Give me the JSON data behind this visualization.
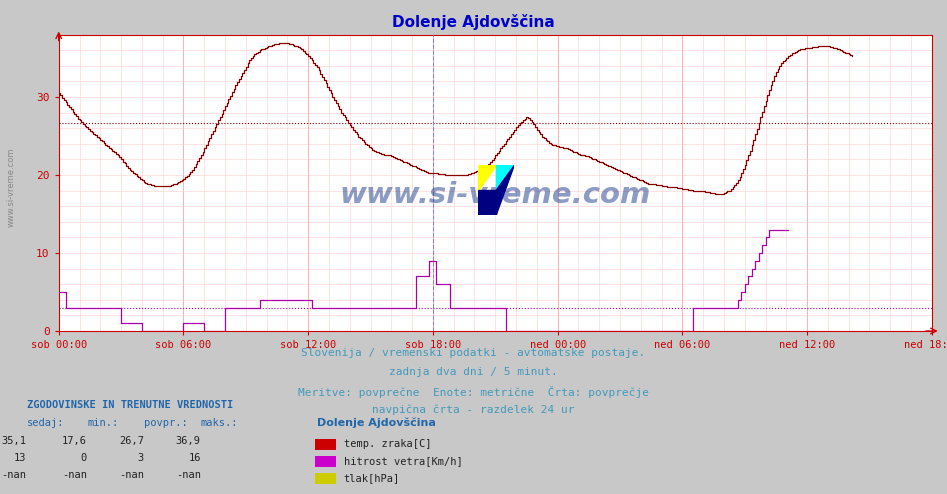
{
  "title": "Dolenje Ajdovščina",
  "title_color": "#0000cc",
  "bg_color": "#e8e8e8",
  "plot_bg_color": "#ffffff",
  "outer_bg_color": "#d8d8d8",
  "grid_color_h": "#ffaaaa",
  "grid_color_v": "#ffcccc",
  "temp_color": "#880000",
  "wind_color": "#aa00aa",
  "avg_temp_line_color": "#880000",
  "avg_wind_line_color": "#aa00aa",
  "vline_color": "#8888bb",
  "axis_color": "#cc0000",
  "tick_color": "#0000cc",
  "xlabels": [
    "sob 00:00",
    "sob 06:00",
    "sob 12:00",
    "sob 18:00",
    "ned 00:00",
    "ned 06:00",
    "ned 12:00",
    "ned 18:00"
  ],
  "xtick_positions": [
    0,
    72,
    144,
    216,
    288,
    360,
    432,
    504
  ],
  "ylim": [
    0,
    38
  ],
  "yticks": [
    0,
    10,
    20,
    30
  ],
  "avg_temp": 26.7,
  "avg_wind": 3.0,
  "vline_pos": 216,
  "footer_lines": [
    "Slovenija / vremenski podatki - avtomatske postaje.",
    "zadnja dva dni / 5 minut.",
    "Meritve: povprečne  Enote: metrične  Črta: povprečje",
    "navpična črta - razdelek 24 ur"
  ],
  "legend_title": "Dolenje Ajdovščina",
  "legend_items": [
    {
      "label": "temp. zraka[C]",
      "color": "#cc0000"
    },
    {
      "label": "hitrost vetra[Km/h]",
      "color": "#cc00cc"
    },
    {
      "label": "tlak[hPa]",
      "color": "#cccc00"
    }
  ],
  "stats_header": "ZGODOVINSKE IN TRENUTNE VREDNOSTI",
  "stats_cols": [
    "sedaj:",
    "min.:",
    "povpr.:",
    "maks.:"
  ],
  "stats_rows": [
    [
      "35,1",
      "17,6",
      "26,7",
      "36,9"
    ],
    [
      "13",
      "0",
      "3",
      "16"
    ],
    [
      "-nan",
      "-nan",
      "-nan",
      "-nan"
    ]
  ],
  "watermark": "www.si-vreme.com",
  "watermark_color": "#1a3a8a",
  "n_points": 505,
  "temp_data": [
    30.5,
    30.2,
    29.9,
    29.6,
    29.3,
    29.0,
    28.7,
    28.4,
    28.1,
    27.8,
    27.5,
    27.2,
    27.0,
    26.8,
    26.5,
    26.3,
    26.1,
    25.9,
    25.7,
    25.5,
    25.3,
    25.1,
    24.9,
    24.7,
    24.5,
    24.3,
    24.1,
    23.9,
    23.7,
    23.5,
    23.3,
    23.1,
    22.9,
    22.7,
    22.5,
    22.3,
    22.0,
    21.7,
    21.5,
    21.2,
    20.9,
    20.7,
    20.5,
    20.3,
    20.1,
    19.9,
    19.7,
    19.5,
    19.3,
    19.1,
    19.0,
    18.9,
    18.8,
    18.7,
    18.7,
    18.6,
    18.6,
    18.6,
    18.6,
    18.6,
    18.6,
    18.6,
    18.6,
    18.6,
    18.6,
    18.7,
    18.8,
    18.9,
    19.0,
    19.1,
    19.2,
    19.3,
    19.5,
    19.7,
    19.9,
    20.1,
    20.4,
    20.7,
    21.0,
    21.4,
    21.8,
    22.2,
    22.6,
    23.0,
    23.4,
    23.8,
    24.3,
    24.8,
    25.2,
    25.7,
    26.1,
    26.5,
    27.0,
    27.4,
    27.8,
    28.3,
    28.8,
    29.2,
    29.7,
    30.1,
    30.6,
    31.0,
    31.5,
    31.9,
    32.3,
    32.7,
    33.1,
    33.5,
    33.9,
    34.3,
    34.7,
    35.0,
    35.2,
    35.5,
    35.7,
    35.8,
    36.0,
    36.1,
    36.2,
    36.3,
    36.4,
    36.5,
    36.6,
    36.7,
    36.8,
    36.8,
    36.8,
    36.9,
    36.9,
    36.9,
    36.9,
    36.9,
    36.9,
    36.8,
    36.8,
    36.7,
    36.6,
    36.5,
    36.4,
    36.3,
    36.1,
    35.9,
    35.7,
    35.5,
    35.3,
    35.0,
    34.7,
    34.4,
    34.1,
    33.8,
    33.4,
    33.0,
    32.6,
    32.2,
    31.8,
    31.3,
    30.9,
    30.5,
    30.0,
    29.6,
    29.2,
    28.8,
    28.4,
    28.0,
    27.7,
    27.4,
    27.0,
    26.7,
    26.4,
    26.1,
    25.8,
    25.5,
    25.2,
    24.9,
    24.7,
    24.5,
    24.2,
    24.0,
    23.8,
    23.6,
    23.4,
    23.2,
    23.1,
    23.0,
    22.9,
    22.8,
    22.7,
    22.7,
    22.6,
    22.6,
    22.5,
    22.5,
    22.4,
    22.3,
    22.2,
    22.1,
    22.0,
    21.9,
    21.8,
    21.7,
    21.6,
    21.5,
    21.4,
    21.3,
    21.2,
    21.1,
    21.0,
    20.9,
    20.8,
    20.7,
    20.6,
    20.5,
    20.4,
    20.3,
    20.3,
    20.3,
    20.2,
    20.2,
    20.2,
    20.1,
    20.1,
    20.1,
    20.1,
    20.0,
    20.0,
    20.0,
    20.0,
    20.0,
    20.0,
    20.0,
    20.0,
    20.0,
    20.0,
    20.0,
    20.0,
    20.0,
    20.1,
    20.1,
    20.2,
    20.3,
    20.4,
    20.5,
    20.6,
    20.7,
    20.8,
    20.9,
    21.0,
    21.2,
    21.4,
    21.6,
    21.9,
    22.2,
    22.5,
    22.8,
    23.1,
    23.4,
    23.7,
    24.0,
    24.3,
    24.6,
    24.9,
    25.2,
    25.5,
    25.8,
    26.1,
    26.4,
    26.6,
    26.8,
    27.0,
    27.2,
    27.4,
    27.3,
    27.1,
    26.8,
    26.5,
    26.2,
    25.8,
    25.5,
    25.2,
    24.9,
    24.7,
    24.5,
    24.3,
    24.1,
    24.0,
    23.9,
    23.8,
    23.7,
    23.7,
    23.6,
    23.6,
    23.5,
    23.5,
    23.4,
    23.3,
    23.2,
    23.1,
    23.0,
    22.9,
    22.8,
    22.7,
    22.6,
    22.5,
    22.5,
    22.4,
    22.4,
    22.3,
    22.2,
    22.1,
    22.0,
    21.9,
    21.8,
    21.7,
    21.6,
    21.5,
    21.4,
    21.3,
    21.2,
    21.1,
    21.0,
    20.9,
    20.8,
    20.7,
    20.6,
    20.5,
    20.4,
    20.3,
    20.2,
    20.1,
    20.0,
    19.9,
    19.8,
    19.7,
    19.6,
    19.5,
    19.4,
    19.3,
    19.2,
    19.1,
    19.0,
    18.9,
    18.8,
    18.8,
    18.8,
    18.8,
    18.7,
    18.7,
    18.7,
    18.6,
    18.6,
    18.6,
    18.5,
    18.5,
    18.5,
    18.4,
    18.4,
    18.4,
    18.3,
    18.3,
    18.3,
    18.2,
    18.2,
    18.2,
    18.1,
    18.1,
    18.1,
    18.0,
    18.0,
    18.0,
    18.0,
    17.9,
    17.9,
    17.9,
    17.8,
    17.8,
    17.8,
    17.7,
    17.7,
    17.7,
    17.6,
    17.6,
    17.6,
    17.6,
    17.6,
    17.7,
    17.8,
    17.9,
    18.0,
    18.2,
    18.4,
    18.7,
    19.0,
    19.4,
    19.8,
    20.3,
    20.8,
    21.3,
    21.9,
    22.5,
    23.1,
    23.8,
    24.5,
    25.2,
    25.9,
    26.7,
    27.4,
    28.1,
    28.8,
    29.5,
    30.2,
    30.9,
    31.5,
    32.1,
    32.7,
    33.2,
    33.6,
    34.0,
    34.3,
    34.6,
    34.8,
    35.0,
    35.2,
    35.4,
    35.6,
    35.7,
    35.8,
    35.9,
    36.0,
    36.1,
    36.1,
    36.2,
    36.3,
    36.3,
    36.3,
    36.3,
    36.4,
    36.4,
    36.4,
    36.5,
    36.5,
    36.5,
    36.5,
    36.5,
    36.5,
    36.5,
    36.4,
    36.4,
    36.3,
    36.3,
    36.2,
    36.1,
    36.0,
    35.9,
    35.8,
    35.7,
    35.6,
    35.5,
    35.4,
    35.3
  ],
  "wind_data": [
    5.0,
    5.0,
    5.0,
    5.0,
    3.0,
    3.0,
    3.0,
    3.0,
    3.0,
    3.0,
    3.0,
    3.0,
    3.0,
    3.0,
    3.0,
    3.0,
    3.0,
    3.0,
    3.0,
    3.0,
    3.0,
    3.0,
    3.0,
    3.0,
    3.0,
    3.0,
    3.0,
    3.0,
    3.0,
    3.0,
    3.0,
    3.0,
    3.0,
    3.0,
    3.0,
    3.0,
    1.0,
    1.0,
    1.0,
    1.0,
    1.0,
    1.0,
    1.0,
    1.0,
    1.0,
    1.0,
    1.0,
    1.0,
    0.0,
    0.0,
    0.0,
    0.0,
    0.0,
    0.0,
    0.0,
    0.0,
    0.0,
    0.0,
    0.0,
    0.0,
    0.0,
    0.0,
    0.0,
    0.0,
    0.0,
    0.0,
    0.0,
    0.0,
    0.0,
    0.0,
    0.0,
    0.0,
    1.0,
    1.0,
    1.0,
    1.0,
    1.0,
    1.0,
    1.0,
    1.0,
    1.0,
    1.0,
    1.0,
    1.0,
    0.0,
    0.0,
    0.0,
    0.0,
    0.0,
    0.0,
    0.0,
    0.0,
    0.0,
    0.0,
    0.0,
    0.0,
    3.0,
    3.0,
    3.0,
    3.0,
    3.0,
    3.0,
    3.0,
    3.0,
    3.0,
    3.0,
    3.0,
    3.0,
    3.0,
    3.0,
    3.0,
    3.0,
    3.0,
    3.0,
    3.0,
    3.0,
    4.0,
    4.0,
    4.0,
    4.0,
    4.0,
    4.0,
    4.0,
    4.0,
    4.0,
    4.0,
    4.0,
    4.0,
    4.0,
    4.0,
    4.0,
    4.0,
    4.0,
    4.0,
    4.0,
    4.0,
    4.0,
    4.0,
    4.0,
    4.0,
    4.0,
    4.0,
    4.0,
    4.0,
    4.0,
    4.0,
    3.0,
    3.0,
    3.0,
    3.0,
    3.0,
    3.0,
    3.0,
    3.0,
    3.0,
    3.0,
    3.0,
    3.0,
    3.0,
    3.0,
    3.0,
    3.0,
    3.0,
    3.0,
    3.0,
    3.0,
    3.0,
    3.0,
    3.0,
    3.0,
    3.0,
    3.0,
    3.0,
    3.0,
    3.0,
    3.0,
    3.0,
    3.0,
    3.0,
    3.0,
    3.0,
    3.0,
    3.0,
    3.0,
    3.0,
    3.0,
    3.0,
    3.0,
    3.0,
    3.0,
    3.0,
    3.0,
    3.0,
    3.0,
    3.0,
    3.0,
    3.0,
    3.0,
    3.0,
    3.0,
    3.0,
    3.0,
    3.0,
    3.0,
    3.0,
    3.0,
    7.0,
    7.0,
    7.0,
    7.0,
    7.0,
    7.0,
    7.0,
    7.0,
    9.0,
    9.0,
    9.0,
    9.0,
    6.0,
    6.0,
    6.0,
    6.0,
    6.0,
    6.0,
    6.0,
    6.0,
    3.0,
    3.0,
    3.0,
    3.0,
    3.0,
    3.0,
    3.0,
    3.0,
    3.0,
    3.0,
    3.0,
    3.0,
    3.0,
    3.0,
    3.0,
    3.0,
    3.0,
    3.0,
    3.0,
    3.0,
    3.0,
    3.0,
    3.0,
    3.0,
    3.0,
    3.0,
    3.0,
    3.0,
    3.0,
    3.0,
    3.0,
    3.0,
    0.0,
    0.0,
    0.0,
    0.0,
    0.0,
    0.0,
    0.0,
    0.0,
    0.0,
    0.0,
    0.0,
    0.0,
    0.0,
    0.0,
    0.0,
    0.0,
    0.0,
    0.0,
    0.0,
    0.0,
    0.0,
    0.0,
    0.0,
    0.0,
    0.0,
    0.0,
    0.0,
    0.0,
    0.0,
    0.0,
    0.0,
    0.0,
    0.0,
    0.0,
    0.0,
    0.0,
    0.0,
    0.0,
    0.0,
    0.0,
    0.0,
    0.0,
    0.0,
    0.0,
    0.0,
    0.0,
    0.0,
    0.0,
    0.0,
    0.0,
    0.0,
    0.0,
    0.0,
    0.0,
    0.0,
    0.0,
    0.0,
    0.0,
    0.0,
    0.0,
    0.0,
    0.0,
    0.0,
    0.0,
    0.0,
    0.0,
    0.0,
    0.0,
    0.0,
    0.0,
    0.0,
    0.0,
    0.0,
    0.0,
    0.0,
    0.0,
    0.0,
    0.0,
    0.0,
    0.0,
    0.0,
    0.0,
    0.0,
    0.0,
    0.0,
    0.0,
    0.0,
    0.0,
    0.0,
    0.0,
    0.0,
    0.0,
    0.0,
    0.0,
    0.0,
    0.0,
    0.0,
    0.0,
    0.0,
    0.0,
    0.0,
    0.0,
    0.0,
    0.0,
    0.0,
    0.0,
    0.0,
    0.0,
    3.0,
    3.0,
    3.0,
    3.0,
    3.0,
    3.0,
    3.0,
    3.0,
    3.0,
    3.0,
    3.0,
    3.0,
    3.0,
    3.0,
    3.0,
    3.0,
    3.0,
    3.0,
    3.0,
    3.0,
    3.0,
    3.0,
    3.0,
    3.0,
    3.0,
    3.0,
    4.0,
    4.0,
    5.0,
    5.0,
    6.0,
    6.0,
    7.0,
    7.0,
    8.0,
    8.0,
    9.0,
    9.0,
    10.0,
    10.0,
    11.0,
    11.0,
    12.0,
    12.0,
    13.0,
    13.0,
    13.0,
    13.0,
    13.0,
    13.0,
    13.0,
    13.0,
    13.0,
    13.0,
    13.0,
    13.0
  ]
}
